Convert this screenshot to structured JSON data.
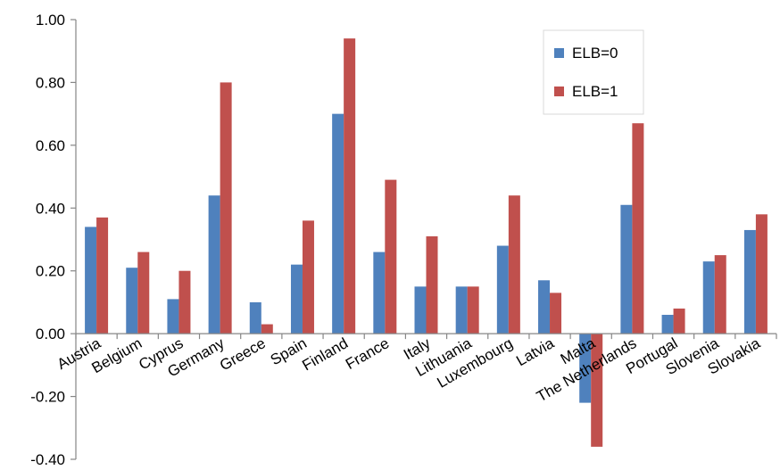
{
  "chart_data": {
    "type": "bar",
    "title": "",
    "xlabel": "",
    "ylabel": "",
    "ylim": [
      -0.4,
      1.0
    ],
    "yticks": [
      "1.00",
      "0.80",
      "0.60",
      "0.40",
      "0.20",
      "0.00",
      "-0.20",
      "-0.40"
    ],
    "grid": false,
    "legend_position": "top-right",
    "categories": [
      "Austria",
      "Belgium",
      "Cyprus",
      "Germany",
      "Greece",
      "Spain",
      "Finland",
      "France",
      "Italy",
      "Lithuania",
      "Luxembourg",
      "Latvia",
      "Malta",
      "The Netherlands",
      "Portugal",
      "Slovenia",
      "Slovakia"
    ],
    "series": [
      {
        "name": "ELB=0",
        "color": "#4F81BD",
        "values": [
          0.34,
          0.21,
          0.11,
          0.44,
          0.1,
          0.22,
          0.7,
          0.26,
          0.15,
          0.15,
          0.28,
          0.17,
          -0.22,
          0.41,
          0.06,
          0.23,
          0.33
        ]
      },
      {
        "name": "ELB=1",
        "color": "#C0504D",
        "values": [
          0.37,
          0.26,
          0.2,
          0.8,
          0.03,
          0.36,
          0.94,
          0.49,
          0.31,
          0.15,
          0.44,
          0.13,
          -0.36,
          0.67,
          0.08,
          0.25,
          0.38
        ]
      }
    ]
  }
}
